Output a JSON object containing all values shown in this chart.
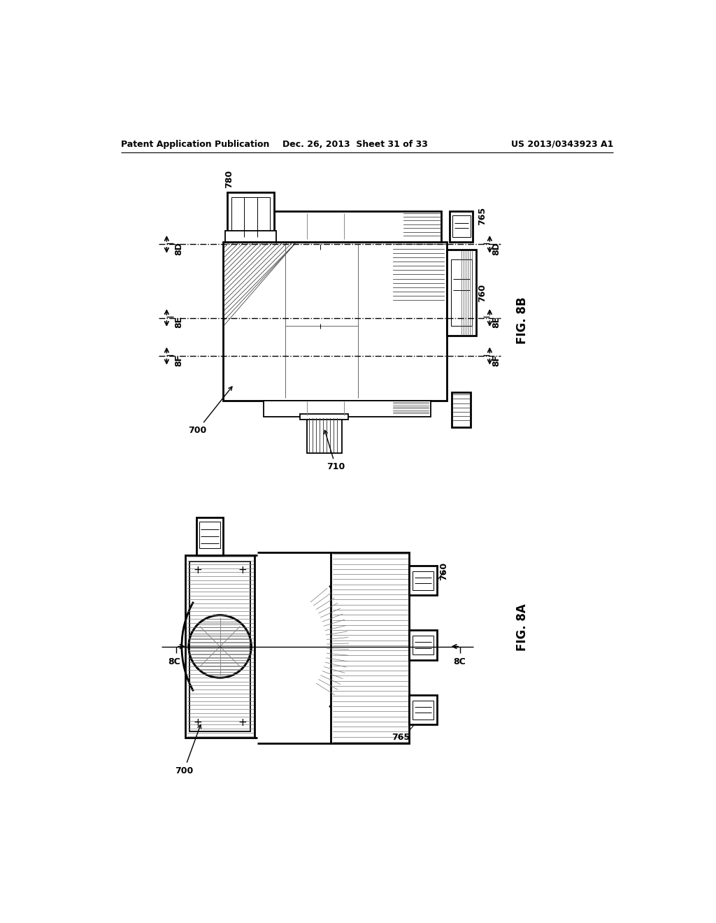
{
  "header_left": "Patent Application Publication",
  "header_center": "Dec. 26, 2013  Sheet 31 of 33",
  "header_right": "US 2013/0343923 A1",
  "fig8b_label": "FIG. 8B",
  "fig8a_label": "FIG. 8A",
  "background_color": "#ffffff",
  "line_color": "#000000"
}
